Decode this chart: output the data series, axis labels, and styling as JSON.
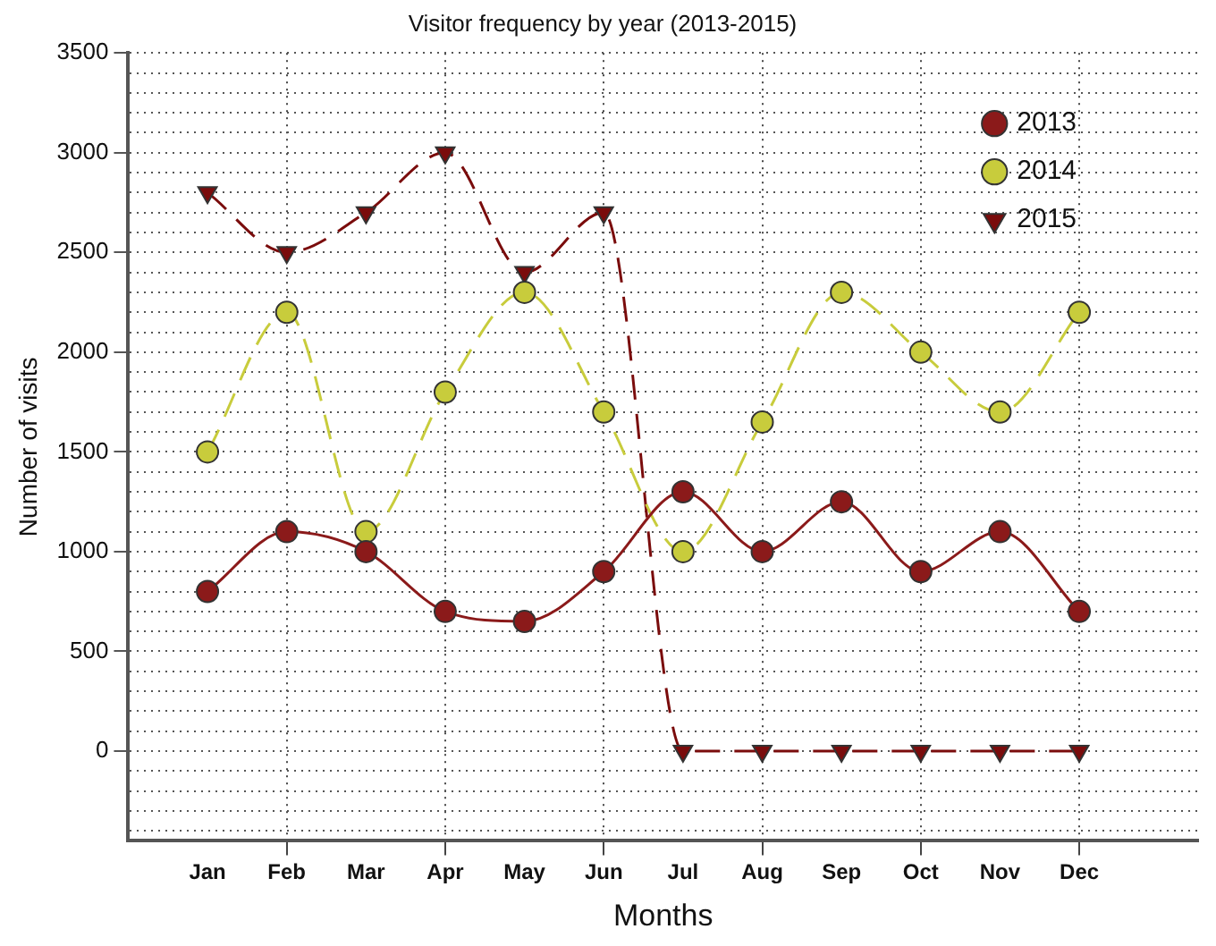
{
  "chart_data": {
    "type": "line",
    "title": "Visitor frequency by year (2013-2015)",
    "xlabel": "Months",
    "ylabel": "Number of visits",
    "categories": [
      "Jan",
      "Feb",
      "Mar",
      "Apr",
      "May",
      "Jun",
      "Jul",
      "Aug",
      "Sep",
      "Oct",
      "Nov",
      "Dec"
    ],
    "series": [
      {
        "name": "2013",
        "color": "#8b1a1a",
        "marker": "circle",
        "line_style": "solid",
        "values": [
          800,
          1100,
          1000,
          700,
          650,
          900,
          1300,
          1000,
          1250,
          900,
          1100,
          700
        ]
      },
      {
        "name": "2014",
        "color": "#c8cc3c",
        "marker": "circle",
        "line_style": "dashed",
        "values": [
          1500,
          2200,
          1100,
          1800,
          2300,
          1700,
          1000,
          1650,
          2300,
          2000,
          1700,
          2200
        ]
      },
      {
        "name": "2015",
        "color": "#7a0c0c",
        "marker": "triangle",
        "line_style": "dashed",
        "values": [
          2800,
          2500,
          2700,
          3000,
          2400,
          2700,
          0,
          0,
          0,
          0,
          0,
          0
        ]
      }
    ],
    "ylim": [
      -450,
      3500
    ],
    "yticks": [
      {
        "value": -400,
        "label": null
      },
      {
        "value": -300,
        "label": null
      },
      {
        "value": -200,
        "label": null
      },
      {
        "value": -100,
        "label": null
      },
      0,
      {
        "value": 100,
        "label": null
      },
      {
        "value": 200,
        "label": null
      },
      {
        "value": 300,
        "label": null
      },
      {
        "value": 400,
        "label": null
      },
      500,
      {
        "value": 600,
        "label": null
      },
      {
        "value": 700,
        "label": null
      },
      {
        "value": 800,
        "label": null
      },
      {
        "value": 900,
        "label": null
      },
      1000,
      {
        "value": 1100,
        "label": null
      },
      {
        "value": 1200,
        "label": null
      },
      {
        "value": 1300,
        "label": null
      },
      {
        "value": 1400,
        "label": null
      },
      1500,
      {
        "value": 1600,
        "label": null
      },
      {
        "value": 1700,
        "label": null
      },
      {
        "value": 1800,
        "label": null
      },
      {
        "value": 1900,
        "label": null
      },
      2000,
      {
        "value": 2100,
        "label": null
      },
      {
        "value": 2200,
        "label": null
      },
      {
        "value": 2300,
        "label": null
      },
      {
        "value": 2400,
        "label": null
      },
      2500,
      {
        "value": 2600,
        "label": null
      },
      {
        "value": 2700,
        "label": null
      },
      {
        "value": 2800,
        "label": null
      },
      {
        "value": 2900,
        "label": null
      },
      3000,
      {
        "value": 3100,
        "label": null
      },
      {
        "value": 3200,
        "label": null
      },
      {
        "value": 3300,
        "label": null
      },
      {
        "value": 3400,
        "label": null
      },
      3500
    ],
    "grid": true,
    "legend": "top right"
  }
}
